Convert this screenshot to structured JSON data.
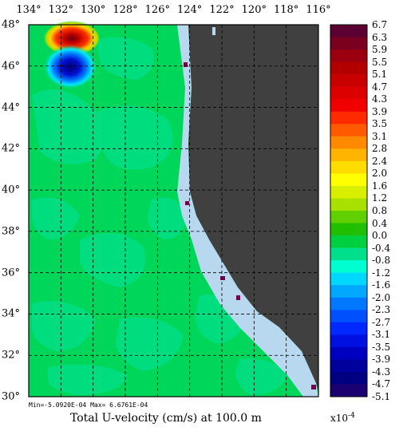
{
  "map": {
    "lon_labels": [
      "134°",
      "132°",
      "130°",
      "128°",
      "126°",
      "124°",
      "122°",
      "120°",
      "118°",
      "116°"
    ],
    "lat_labels": [
      "48°",
      "46°",
      "44°",
      "42°",
      "40°",
      "38°",
      "36°",
      "34°",
      "32°",
      "30°"
    ],
    "lon_range": [
      134,
      116
    ],
    "lat_range": [
      48,
      30
    ],
    "land_color": "#404040",
    "ocean_base_color": "#00d65a",
    "grid": "dashed"
  },
  "colorbar": {
    "labels": [
      "6.7",
      "6.3",
      "5.9",
      "5.5",
      "5.1",
      "4.7",
      "4.3",
      "3.9",
      "3.5",
      "3.1",
      "2.8",
      "2.4",
      "2.0",
      "1.6",
      "1.2",
      "0.8",
      "0.4",
      "0.0",
      "-0.4",
      "-0.8",
      "-1.2",
      "-1.6",
      "-2.0",
      "-2.3",
      "-2.7",
      "-3.1",
      "-3.5",
      "-3.9",
      "-4.3",
      "-4.7",
      "-5.1"
    ],
    "colors": [
      "#5a0033",
      "#7a0020",
      "#9a0010",
      "#b20000",
      "#c80000",
      "#dc0000",
      "#f00000",
      "#ff2a00",
      "#ff5a00",
      "#ff8a00",
      "#ffb400",
      "#ffdc00",
      "#ffff00",
      "#d8f000",
      "#a8e000",
      "#60d000",
      "#20c000",
      "#00d040",
      "#00e08c",
      "#00ffd0",
      "#00d8ff",
      "#00a8ff",
      "#0078ff",
      "#0050ff",
      "#0028ff",
      "#0010e0",
      "#0000c0",
      "#00009c",
      "#000080",
      "#1a0070",
      "#30005c"
    ],
    "exponent_base": "x10",
    "exponent_power": "-4"
  },
  "footer": {
    "minmax": "Min=-5.0920E-04  Max= 6.6761E-04",
    "title": "Total U-velocity (cm/s) at 100.0 m"
  }
}
